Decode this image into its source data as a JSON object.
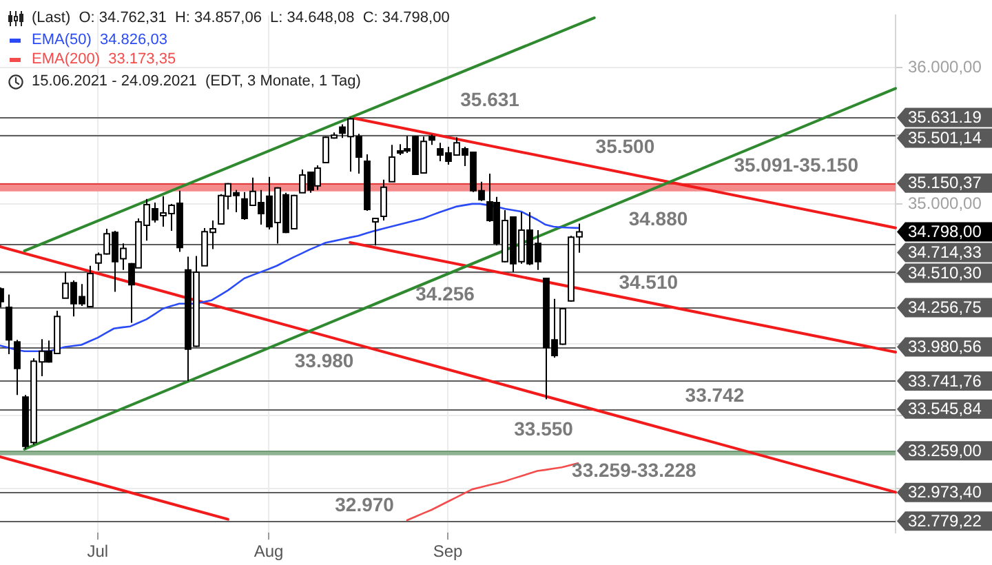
{
  "chart_data": {
    "type": "candlestick",
    "title": "(Last)  O: 34.762,31  H: 34.857,06  L: 34.648,08  C: 34.798,00",
    "subtitle": "15.06.2021 - 24.09.2021  (EDT, 3 Monate, 1 Tag)",
    "legend": "top left",
    "log": true,
    "grid": true,
    "categories": [
      null,
      null,
      null,
      null,
      null,
      null,
      null,
      null,
      null,
      null,
      null,
      null,
      "Jul",
      null,
      null,
      null,
      null,
      null,
      null,
      null,
      null,
      null,
      null,
      null,
      null,
      null,
      null,
      null,
      null,
      null,
      null,
      null,
      null,
      "Aug",
      null,
      null,
      null,
      null,
      null,
      null,
      null,
      null,
      null,
      null,
      null,
      null,
      null,
      null,
      null,
      null,
      null,
      null,
      null,
      null,
      null,
      "Sep",
      null,
      null,
      null,
      null,
      null,
      null,
      null,
      null,
      null,
      null,
      null,
      null,
      null,
      null,
      null,
      null,
      null,
      null,
      null,
      null,
      null,
      null,
      null,
      null,
      null,
      null,
      null,
      null,
      null,
      null,
      null,
      null,
      null,
      null,
      null,
      null,
      null,
      null,
      null,
      null,
      null,
      null,
      null,
      null,
      null,
      null,
      null,
      null,
      null,
      null,
      null,
      null,
      null,
      null,
      null
    ],
    "ohlc": [
      [
        34390,
        34400,
        34260,
        34300
      ],
      [
        34260,
        34350,
        33930,
        34030
      ],
      [
        34015,
        34030,
        33645,
        33830
      ],
      [
        33630,
        33645,
        33270,
        33290
      ],
      [
        33315,
        33900,
        33300,
        33880
      ],
      [
        33875,
        34035,
        33775,
        33950
      ],
      [
        33950,
        34025,
        33870,
        33875
      ],
      [
        33935,
        34235,
        33930,
        34195
      ],
      [
        34325,
        34510,
        34325,
        34430
      ],
      [
        34435,
        34450,
        34195,
        34285
      ],
      [
        34335,
        34425,
        34270,
        34285
      ],
      [
        34265,
        34555,
        34260,
        34500
      ],
      [
        34575,
        34650,
        34520,
        34635
      ],
      [
        34640,
        34820,
        34635,
        34785
      ],
      [
        34795,
        34805,
        34370,
        34585
      ],
      [
        34605,
        34715,
        34525,
        34680
      ],
      [
        34570,
        34575,
        34150,
        34420
      ],
      [
        34540,
        34895,
        34540,
        34870
      ],
      [
        34845,
        35035,
        34735,
        34995
      ],
      [
        34965,
        35010,
        34865,
        34885
      ],
      [
        34915,
        35055,
        34835,
        34935
      ],
      [
        34930,
        35000,
        34805,
        34990
      ],
      [
        35005,
        35095,
        34655,
        34685
      ],
      [
        34525,
        34620,
        33742,
        33965
      ],
      [
        33985,
        34625,
        33980,
        34510
      ],
      [
        34555,
        34825,
        34555,
        34800
      ],
      [
        34795,
        34880,
        34675,
        34820
      ],
      [
        34855,
        35070,
        34855,
        35060
      ],
      [
        35055,
        35150,
        34960,
        35145
      ],
      [
        35080,
        35100,
        34940,
        35060
      ],
      [
        35035,
        35085,
        34885,
        34895
      ],
      [
        34990,
        35190,
        34985,
        35090
      ],
      [
        35010,
        35100,
        34850,
        34930
      ],
      [
        35055,
        35195,
        34815,
        34835
      ],
      [
        34865,
        35120,
        34714,
        35115
      ],
      [
        35065,
        35080,
        34790,
        34795
      ],
      [
        34820,
        35065,
        34815,
        35060
      ],
      [
        35080,
        35250,
        35080,
        35210
      ],
      [
        35230,
        35235,
        35080,
        35100
      ],
      [
        35130,
        35280,
        35100,
        35260
      ],
      [
        35300,
        35490,
        35295,
        35485
      ],
      [
        35480,
        35520,
        35475,
        35500
      ],
      [
        35560,
        35580,
        35480,
        35515
      ],
      [
        35490,
        35631,
        35235,
        35620
      ],
      [
        35490,
        35510,
        35220,
        35340
      ],
      [
        35310,
        35360,
        34950,
        34960
      ],
      [
        34870,
        34895,
        34700,
        34895
      ],
      [
        34910,
        35175,
        34880,
        35120
      ],
      [
        35160,
        35430,
        35160,
        35340
      ],
      [
        35385,
        35435,
        35355,
        35370
      ],
      [
        35400,
        35495,
        35370,
        35385
      ],
      [
        35490,
        35495,
        35215,
        35215
      ],
      [
        35225,
        35490,
        35225,
        35455
      ],
      [
        35490,
        35505,
        35430,
        35465
      ],
      [
        35400,
        35445,
        35310,
        35355
      ],
      [
        35370,
        35415,
        35285,
        35310
      ],
      [
        35355,
        35485,
        35355,
        35445
      ],
      [
        35400,
        35415,
        35275,
        35355
      ],
      [
        35375,
        35375,
        35085,
        35095
      ],
      [
        35095,
        35160,
        35020,
        35030
      ],
      [
        35015,
        35220,
        34870,
        34880
      ],
      [
        35010,
        35050,
        34700,
        34715
      ],
      [
        34585,
        34955,
        34580,
        34880
      ],
      [
        34905,
        34910,
        34510,
        34570
      ],
      [
        34585,
        34940,
        34570,
        34810
      ],
      [
        34810,
        34940,
        34560,
        34570
      ],
      [
        34715,
        34810,
        34525,
        34585
      ],
      [
        34465,
        34470,
        33614,
        33975
      ],
      [
        34030,
        34320,
        33905,
        33920
      ],
      [
        34000,
        34255,
        33995,
        34250
      ],
      [
        34305,
        34770,
        34300,
        34760
      ],
      [
        34762.31,
        34857.06,
        34648.08,
        34798.0
      ],
      null,
      null,
      null,
      null,
      null,
      null,
      null,
      null,
      null,
      null,
      null,
      null,
      null,
      null,
      null,
      null,
      null,
      null,
      null,
      null,
      null,
      null,
      null,
      null,
      null,
      null,
      null,
      null,
      null,
      null,
      null,
      null,
      null,
      null,
      null,
      null,
      null,
      null,
      null
    ],
    "colors": [
      "#000000",
      "#000000",
      "#000000",
      "#000000",
      "#ffffff",
      "#ffffff",
      "#000000",
      "#ffffff",
      "#ffffff",
      "#000000",
      "#000000",
      "#ffffff",
      "#ffffff",
      "#ffffff",
      "#000000",
      "#ffffff",
      "#000000",
      "#ffffff",
      "#ffffff",
      "#000000",
      "#ffffff",
      "#ffffff",
      "#000000",
      "#000000",
      "#ffffff",
      "#ffffff",
      "#ffffff",
      "#ffffff",
      "#ffffff",
      "#000000",
      "#000000",
      "#ffffff",
      "#000000",
      "#000000",
      "#ffffff",
      "#000000",
      "#ffffff",
      "#ffffff",
      "#000000",
      "#ffffff",
      "#ffffff",
      "#ffffff",
      "#000000",
      "#ffffff",
      "#000000",
      "#000000",
      "#ffffff",
      "#ffffff",
      "#ffffff",
      "#000000",
      "#000000",
      "#000000",
      "#ffffff",
      "#000000",
      "#000000",
      "#000000",
      "#ffffff",
      "#000000",
      "#000000",
      "#000000",
      "#000000",
      "#000000",
      "#ffffff",
      "#000000",
      "#ffffff",
      "#000000",
      "#000000",
      "#000000",
      "#000000",
      "#ffffff",
      "#ffffff",
      "#ffffff",
      null,
      null,
      null,
      null,
      null,
      null,
      null,
      null,
      null,
      null,
      null,
      null,
      null,
      null,
      null,
      null,
      null,
      null,
      null,
      null,
      null,
      null,
      null,
      null,
      null,
      null,
      null,
      null,
      null,
      null,
      null,
      null,
      null,
      null,
      null,
      null,
      null,
      null,
      null
    ],
    "series": [
      {
        "type": "line",
        "name": "EMA(50)  34.826,03",
        "color": "#2a4bf5",
        "values": [
          33990,
          33975,
          33960,
          33950,
          33950,
          33950,
          33950,
          33965,
          33980,
          33988,
          33995,
          34020,
          34045,
          34078,
          34110,
          34118,
          34125,
          34150,
          34175,
          34212,
          34250,
          34268,
          34285,
          34285,
          34285,
          34298,
          34310,
          34345,
          34380,
          34422,
          34465,
          34488,
          34510,
          34532,
          34555,
          34585,
          34615,
          34642,
          34670,
          34695,
          34720,
          34732,
          34745,
          34758,
          34770,
          34788,
          34805,
          34820,
          34835,
          34850,
          34865,
          34880,
          34895,
          34918,
          34940,
          34960,
          34980,
          34990,
          35000,
          35000,
          34990,
          34980,
          34965,
          34955,
          34945,
          34915,
          34885,
          34850,
          34835,
          34830,
          34828,
          34826.03,
          null,
          null,
          null,
          null,
          null,
          null,
          null,
          null,
          null,
          null,
          null,
          null,
          null,
          null,
          null,
          null,
          null,
          null,
          null,
          null,
          null,
          null,
          null,
          null,
          null,
          null,
          null,
          null,
          null,
          null,
          null,
          null,
          null,
          null,
          null,
          null,
          null,
          null,
          null
        ]
      },
      {
        "type": "line",
        "name": "EMA(200)  33.173,35",
        "color": "#f44b4b",
        "values": [
          null,
          null,
          null,
          null,
          null,
          null,
          null,
          null,
          null,
          null,
          null,
          null,
          null,
          null,
          null,
          null,
          null,
          null,
          null,
          null,
          null,
          null,
          null,
          null,
          null,
          null,
          null,
          null,
          null,
          null,
          null,
          null,
          null,
          null,
          null,
          null,
          null,
          null,
          null,
          null,
          null,
          null,
          null,
          null,
          null,
          null,
          null,
          null,
          null,
          null,
          32785,
          32808,
          32832,
          32855,
          32883,
          32911,
          32939,
          32967,
          32995,
          33009,
          33023,
          33036,
          33050,
          33068,
          33085,
          33103,
          33120,
          33128,
          33137,
          33145,
          33159,
          33173.35,
          null,
          null,
          null,
          null,
          null,
          null,
          null,
          null,
          null,
          null,
          null,
          null,
          null,
          null,
          null,
          null,
          null,
          null,
          null,
          null,
          null,
          null,
          null,
          null,
          null,
          null,
          null,
          null,
          null,
          null,
          null,
          null,
          null,
          null,
          null,
          null,
          null,
          null,
          null
        ]
      },
      {
        "type": "line",
        "color": "#2f8a2f",
        "values": [
          null,
          null,
          null,
          34662,
          null,
          null,
          null,
          null,
          null,
          null,
          null,
          null,
          null,
          null,
          null,
          null,
          null,
          null,
          null,
          null,
          null,
          null,
          null,
          null,
          null,
          null,
          null,
          null,
          null,
          null,
          null,
          null,
          null,
          null,
          null,
          null,
          null,
          null,
          null,
          null,
          null,
          null,
          null,
          null,
          null,
          null,
          null,
          null,
          null,
          null,
          null,
          null,
          null,
          null,
          null,
          null,
          null,
          null,
          null,
          null,
          null,
          null,
          null,
          null,
          null,
          null,
          null,
          null,
          null,
          null,
          null,
          null,
          null,
          36372,
          null,
          null,
          null,
          null,
          null,
          null,
          null,
          null,
          null,
          null,
          null,
          null,
          null,
          null,
          null,
          null,
          null,
          null,
          null,
          null,
          null,
          null,
          null,
          null,
          null,
          null,
          null,
          null,
          null,
          null,
          null,
          null,
          null,
          null,
          null,
          null,
          null
        ]
      },
      {
        "type": "line",
        "color": "#2f8a2f",
        "values": [
          null,
          null,
          null,
          33270,
          null,
          null,
          null,
          null,
          null,
          null,
          null,
          null,
          null,
          null,
          null,
          null,
          null,
          null,
          null,
          null,
          null,
          null,
          null,
          null,
          null,
          null,
          null,
          null,
          null,
          null,
          null,
          null,
          null,
          null,
          null,
          null,
          null,
          null,
          null,
          null,
          null,
          null,
          null,
          null,
          null,
          null,
          null,
          null,
          null,
          null,
          null,
          null,
          null,
          null,
          null,
          null,
          null,
          null,
          null,
          null,
          null,
          null,
          null,
          null,
          null,
          null,
          null,
          null,
          null,
          null,
          null,
          null,
          null,
          null,
          null,
          null,
          null,
          null,
          null,
          null,
          null,
          null,
          null,
          null,
          null,
          null,
          null,
          null,
          null,
          null,
          null,
          null,
          null,
          null,
          null,
          null,
          null,
          null,
          null,
          null,
          null,
          null,
          null,
          null,
          null,
          null,
          null,
          null,
          null,
          null,
          35845
        ]
      },
      {
        "type": "line",
        "color": "#f21b1b",
        "values": [
          null,
          null,
          null,
          null,
          null,
          null,
          null,
          null,
          null,
          null,
          null,
          null,
          null,
          null,
          null,
          null,
          null,
          null,
          null,
          null,
          null,
          null,
          null,
          null,
          null,
          null,
          null,
          null,
          null,
          null,
          null,
          null,
          null,
          null,
          null,
          null,
          null,
          null,
          null,
          null,
          null,
          null,
          null,
          35631,
          null,
          null,
          null,
          null,
          null,
          null,
          null,
          null,
          null,
          null,
          null,
          null,
          null,
          null,
          null,
          null,
          null,
          null,
          null,
          null,
          null,
          null,
          null,
          null,
          null,
          null,
          null,
          null,
          null,
          null,
          null,
          null,
          null,
          null,
          null,
          null,
          null,
          null,
          null,
          null,
          null,
          null,
          null,
          null,
          null,
          null,
          null,
          null,
          null,
          null,
          null,
          null,
          null,
          null,
          null,
          null,
          null,
          null,
          null,
          null,
          null,
          null,
          null,
          null,
          null,
          null,
          34827
        ]
      },
      {
        "type": "line",
        "color": "#f21b1b",
        "values": [
          null,
          null,
          null,
          null,
          null,
          null,
          null,
          null,
          null,
          null,
          null,
          null,
          null,
          null,
          null,
          null,
          null,
          null,
          null,
          null,
          null,
          null,
          null,
          null,
          null,
          null,
          null,
          null,
          null,
          null,
          null,
          null,
          null,
          null,
          null,
          null,
          null,
          null,
          null,
          null,
          null,
          null,
          null,
          34722,
          null,
          null,
          null,
          null,
          null,
          null,
          null,
          null,
          null,
          null,
          null,
          null,
          null,
          null,
          null,
          null,
          null,
          null,
          null,
          null,
          null,
          null,
          null,
          null,
          null,
          null,
          null,
          null,
          null,
          null,
          null,
          null,
          null,
          null,
          null,
          null,
          null,
          null,
          null,
          null,
          null,
          null,
          null,
          null,
          null,
          null,
          null,
          null,
          null,
          null,
          null,
          null,
          null,
          null,
          null,
          null,
          null,
          null,
          null,
          null,
          null,
          null,
          null,
          null,
          null,
          null,
          33944
        ]
      },
      {
        "type": "line",
        "color": "#f21b1b",
        "values": [
          34692,
          null,
          null,
          null,
          null,
          null,
          null,
          null,
          null,
          null,
          null,
          null,
          null,
          null,
          null,
          null,
          null,
          null,
          null,
          null,
          null,
          null,
          null,
          null,
          null,
          null,
          null,
          null,
          null,
          null,
          null,
          null,
          null,
          null,
          null,
          null,
          null,
          null,
          null,
          null,
          null,
          null,
          null,
          null,
          null,
          null,
          null,
          null,
          null,
          null,
          null,
          null,
          null,
          null,
          null,
          null,
          null,
          null,
          null,
          null,
          null,
          null,
          null,
          null,
          null,
          null,
          null,
          null,
          null,
          null,
          null,
          null,
          null,
          null,
          null,
          null,
          null,
          null,
          null,
          null,
          null,
          null,
          null,
          null,
          null,
          null,
          null,
          null,
          null,
          null,
          null,
          null,
          null,
          null,
          null,
          null,
          null,
          null,
          null,
          null,
          null,
          null,
          null,
          null,
          null,
          null,
          null,
          null,
          null,
          null,
          32975
        ]
      },
      {
        "type": "line",
        "color": "#f21b1b",
        "values": [
          33217,
          null,
          null,
          null,
          null,
          null,
          null,
          null,
          null,
          null,
          null,
          null,
          null,
          null,
          null,
          null,
          null,
          null,
          null,
          null,
          null,
          null,
          null,
          null,
          null,
          null,
          null,
          null,
          32791,
          null,
          null,
          null,
          null,
          null,
          null,
          null,
          null,
          null,
          null,
          null,
          null,
          null,
          null,
          null,
          null,
          null,
          null,
          null,
          null,
          null,
          null,
          null,
          null,
          null,
          null,
          null,
          null,
          null,
          null,
          null,
          null,
          null,
          null,
          null,
          null,
          null,
          null,
          null,
          null,
          null,
          null,
          null,
          null,
          null,
          null,
          null,
          null,
          null,
          null,
          null,
          null,
          null,
          null,
          null,
          null,
          null,
          null,
          null,
          null,
          null,
          null,
          null,
          null,
          null,
          null,
          null,
          null,
          null,
          null,
          null,
          null,
          null,
          null,
          null,
          null,
          null,
          null,
          null,
          null,
          null,
          null
        ]
      }
    ],
    "ylim": [
      32700,
      36390
    ],
    "yticks": [
      {
        "value": 36000,
        "label": "36.000,00"
      },
      {
        "value": 35500,
        "label": null
      },
      {
        "value": 35000,
        "label": "35.000,00"
      },
      {
        "value": 34500,
        "label": null
      },
      {
        "value": 34000,
        "label": null
      },
      {
        "value": 33500,
        "label": null
      },
      {
        "value": 33000,
        "label": null
      }
    ],
    "bands": [
      {
        "axis": "y",
        "from": 35091,
        "to": 35150.37,
        "label": "35.091-35.150",
        "color": "#f58a8a"
      },
      {
        "axis": "y",
        "from": 33228,
        "to": 33259,
        "label": "33.259-33.228",
        "color": "#8fb393"
      }
    ],
    "ref_lines": [
      {
        "axis": "y",
        "value": 35631.19,
        "label": "35.631.19",
        "color": "#5c5c5c"
      },
      {
        "axis": "y",
        "value": 35501.14,
        "label": "35.501,14",
        "color": "#5c5c5c"
      },
      {
        "axis": "y",
        "value": 35150.37,
        "label": "35.150,37",
        "color": "#e23b3b"
      },
      {
        "axis": "y",
        "value": 34714.33,
        "label": "34.714,33",
        "color": "#5c5c5c"
      },
      {
        "axis": "y",
        "value": 34510.3,
        "label": "34.510,30",
        "color": "#5c5c5c"
      },
      {
        "axis": "y",
        "value": 34256.75,
        "label": "34.256,75",
        "color": "#5c5c5c"
      },
      {
        "axis": "y",
        "value": 33980.56,
        "label": "33.980,56",
        "color": "#5c5c5c"
      },
      {
        "axis": "y",
        "value": 33741.76,
        "label": "33.741,76",
        "color": "#5c5c5c"
      },
      {
        "axis": "y",
        "value": 33545.84,
        "label": "33.545,84",
        "color": "#5c5c5c"
      },
      {
        "axis": "y",
        "value": 33259,
        "label": "33.259,00",
        "color": "#6f9a73"
      },
      {
        "axis": "y",
        "value": 32973.4,
        "label": "32.973,40",
        "color": "#5c5c5c"
      },
      {
        "axis": "y",
        "value": 32779.22,
        "label": "32.779,22",
        "color": "#5c5c5c"
      }
    ],
    "annotations": [
      {
        "text": "35.631",
        "y": 35631.19
      },
      {
        "text": "35.500",
        "y": 35501.14
      },
      "34.880",
      {
        "text": "34.510",
        "y": 34510.3
      },
      {
        "text": "34.256",
        "y": 34256.75
      },
      {
        "text": "33.980",
        "y": 33980.56
      },
      {
        "text": "33.742",
        "y": 33741.76
      },
      {
        "text": "33.550",
        "y": 33545.84
      },
      {
        "text": "32.970",
        "y": 32973.4
      },
      "34.798,00"
    ]
  }
}
